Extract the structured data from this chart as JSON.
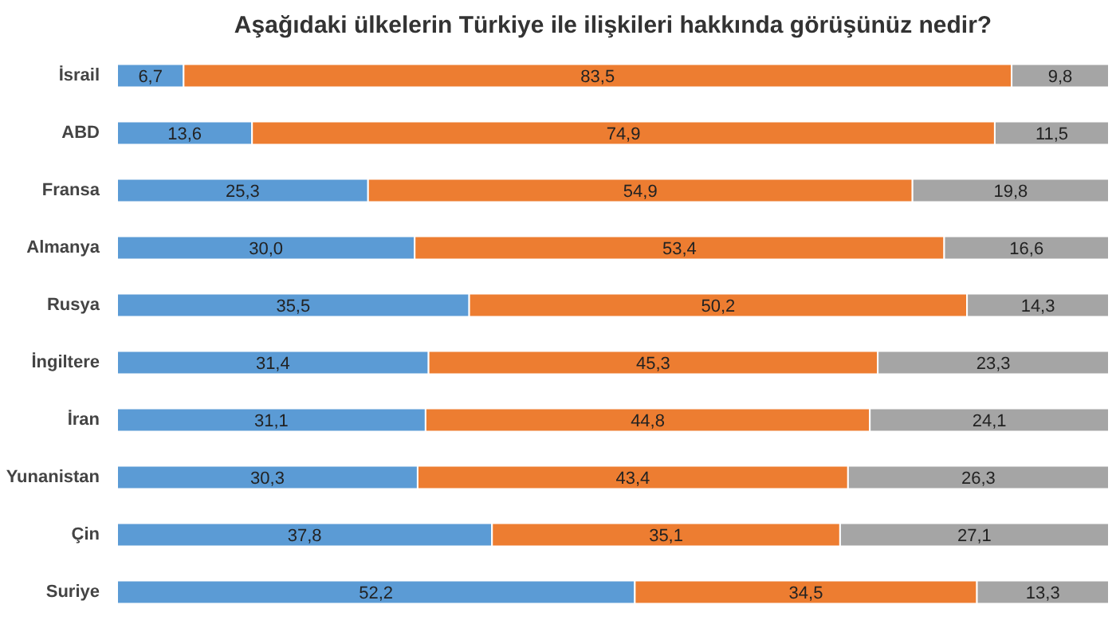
{
  "chart_data": {
    "type": "bar",
    "orientation": "horizontal",
    "stacked": true,
    "grid": false,
    "tick_labels": "y",
    "title": "Aşağıdaki ülkelerin Türkiye ile ilişkileri hakkında görüşünüz nedir?",
    "categories": [
      "İsrail",
      "ABD",
      "Fransa",
      "Almanya",
      "Rusya",
      "İngiltere",
      "İran",
      "Yunanistan",
      "Çin",
      "Suriye"
    ],
    "series": [
      {
        "color": "#5b9bd5",
        "values": [
          6.7,
          13.6,
          25.3,
          30.0,
          35.5,
          31.4,
          31.1,
          30.3,
          37.8,
          52.2
        ],
        "value_labels": [
          "6,7",
          "13,6",
          "25,3",
          "30,0",
          "35,5",
          "31,4",
          "31,1",
          "30,3",
          "37,8",
          "52,2"
        ]
      },
      {
        "color": "#ed7d31",
        "values": [
          83.5,
          74.9,
          54.9,
          53.4,
          50.2,
          45.3,
          44.8,
          43.4,
          35.1,
          34.5
        ],
        "value_labels": [
          "83,5",
          "74,9",
          "54,9",
          "53,4",
          "50,2",
          "45,3",
          "44,8",
          "43,4",
          "35,1",
          "34,5"
        ]
      },
      {
        "color": "#a5a5a5",
        "values": [
          9.8,
          11.5,
          19.8,
          16.6,
          14.3,
          23.3,
          24.1,
          26.3,
          27.1,
          13.3
        ],
        "value_labels": [
          "9,8",
          "11,5",
          "19,8",
          "16,6",
          "14,3",
          "23,3",
          "24,1",
          "26,3",
          "27,1",
          "13,3"
        ]
      }
    ]
  }
}
